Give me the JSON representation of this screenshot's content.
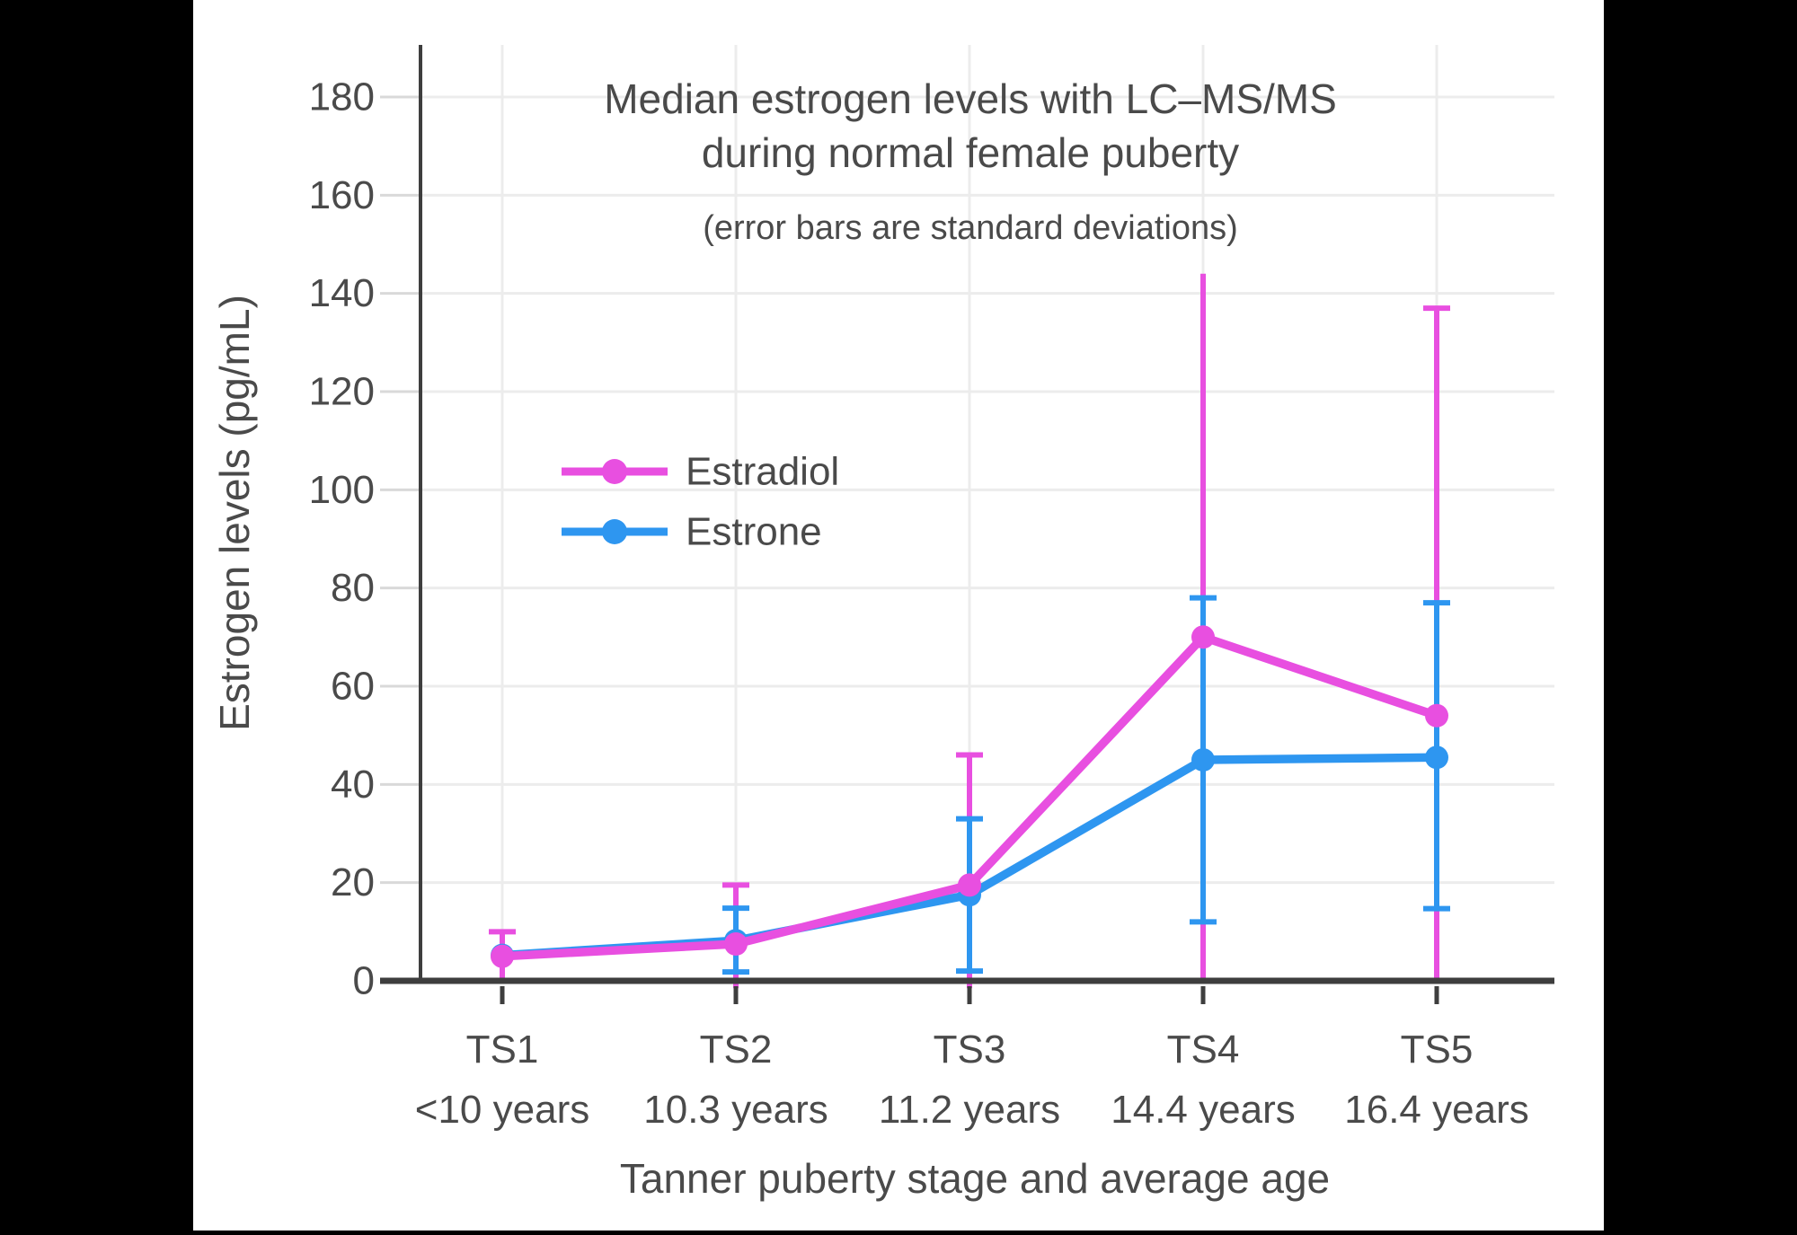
{
  "figure": {
    "kind": "statistical line chart with error bars",
    "background": "#000000",
    "plot_background": "#ffffff"
  },
  "chart_data": {
    "type": "line",
    "title_lines": [
      "Median estrogen levels with LC–MS/MS",
      "during normal female puberty"
    ],
    "subtitle": "(error bars are standard deviations)",
    "xlabel": "Tanner puberty stage and average age",
    "ylabel": "Estrogen levels (pg/mL)",
    "categories": [
      "TS1",
      "TS2",
      "TS3",
      "TS4",
      "TS5"
    ],
    "category_sublabels": [
      "<10 years",
      "10.3 years",
      "11.2 years",
      "14.4 years",
      "16.4 years"
    ],
    "yticks": [
      0,
      20,
      40,
      60,
      80,
      100,
      120,
      140,
      160,
      180
    ],
    "ylim": [
      0,
      190
    ],
    "grid": true,
    "legend_position": "upper-left-inside",
    "series": [
      {
        "name": "Estradiol",
        "color": "#E84FE0",
        "values": [
          5,
          7.5,
          19.5,
          70,
          54
        ],
        "error_bars": [
          {
            "hi": 10,
            "lo": 0,
            "hi_cap": true,
            "lo_cap": true
          },
          {
            "hi": 19.5,
            "lo": -1.5,
            "hi_cap": true,
            "lo_cap": false
          },
          {
            "hi": 46,
            "lo": -1.5,
            "hi_cap": true,
            "lo_cap": false
          },
          {
            "hi": 144,
            "lo": 0,
            "hi_cap": false,
            "lo_cap": false
          },
          {
            "hi": 137,
            "lo": 0,
            "hi_cap": true,
            "lo_cap": false
          }
        ]
      },
      {
        "name": "Estrone",
        "color": "#2E96F0",
        "values": [
          5.2,
          8.2,
          17.5,
          45,
          45.5
        ],
        "error_bars": [
          null,
          {
            "hi": 14.8,
            "lo": 1.8,
            "hi_cap": true,
            "lo_cap": true
          },
          {
            "hi": 33,
            "lo": 2,
            "hi_cap": true,
            "lo_cap": true
          },
          {
            "hi": 78,
            "lo": 12,
            "hi_cap": true,
            "lo_cap": true
          },
          {
            "hi": 77,
            "lo": 14.7,
            "hi_cap": true,
            "lo_cap": true
          }
        ]
      }
    ],
    "colors": {
      "grid": "#ECECEC",
      "tick_stub": "#D9D9D9",
      "axis": "#3E3E3E",
      "text": "#4A4A4A",
      "title_text": "#474747"
    }
  }
}
